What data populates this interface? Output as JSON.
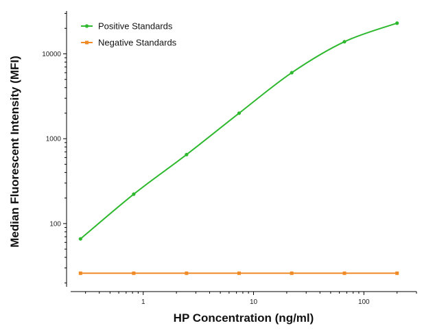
{
  "chart_data": {
    "type": "line",
    "title": "",
    "xlabel": "HP Concentration (ng/ml)",
    "ylabel": "Median Fluorescent Intensity (MFI)",
    "x_scale": "log",
    "y_scale": "log",
    "xlim": [
      0.22,
      300
    ],
    "ylim": [
      18,
      32000
    ],
    "x_ticks": [
      1,
      10,
      100
    ],
    "x_tick_labels": [
      "1",
      "10",
      "100"
    ],
    "y_ticks": [
      100,
      1000,
      10000
    ],
    "y_tick_labels": [
      "100",
      "1000",
      "10000"
    ],
    "grid": false,
    "legend_position": "top-left",
    "series": [
      {
        "name": "Positive Standards",
        "color": "#2eb82e",
        "marker": "circle",
        "curve": "fitted",
        "x": [
          0.27,
          0.82,
          2.47,
          7.4,
          22.2,
          66.7,
          200
        ],
        "y": [
          66,
          222,
          650,
          2000,
          6000,
          13900,
          23000
        ]
      },
      {
        "name": "Negative Standards",
        "color": "#f08a24",
        "marker": "square",
        "curve": "straight",
        "x": [
          0.27,
          0.82,
          2.47,
          7.4,
          22.2,
          66.7,
          200
        ],
        "y": [
          26,
          26,
          26,
          26,
          26,
          26,
          26
        ]
      }
    ]
  }
}
